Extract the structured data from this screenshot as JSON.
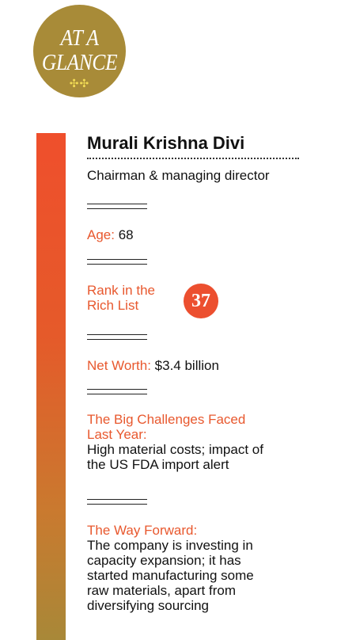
{
  "badge": {
    "line1": "AT A",
    "line2": "GLANCE",
    "ornament": "✣✣"
  },
  "profile": {
    "name": "Murali Krishna Divi",
    "role": "Chairman & managing director"
  },
  "age": {
    "label": "Age:",
    "value": " 68"
  },
  "rank": {
    "label_line1": "Rank in the",
    "label_line2": "Rich List",
    "value": "37"
  },
  "net_worth": {
    "label": "Net Worth:",
    "value": " $3.4 billion"
  },
  "challenges": {
    "label_line1": "The Big Challenges Faced",
    "label_line2": "Last Year:",
    "text_line1": "High material costs; impact of",
    "text_line2": "the US FDA import alert"
  },
  "way_forward": {
    "label": "The Way Forward:",
    "text_line1": "The company is investing in",
    "text_line2": "capacity expansion; it has",
    "text_line3": "started manufacturing some",
    "text_line4": "raw materials, apart from",
    "text_line5": "diversifying sourcing"
  },
  "colors": {
    "accent_orange": "#e8582e",
    "badge_gold": "#a88b38",
    "rank_circle": "#ec4f2f"
  }
}
